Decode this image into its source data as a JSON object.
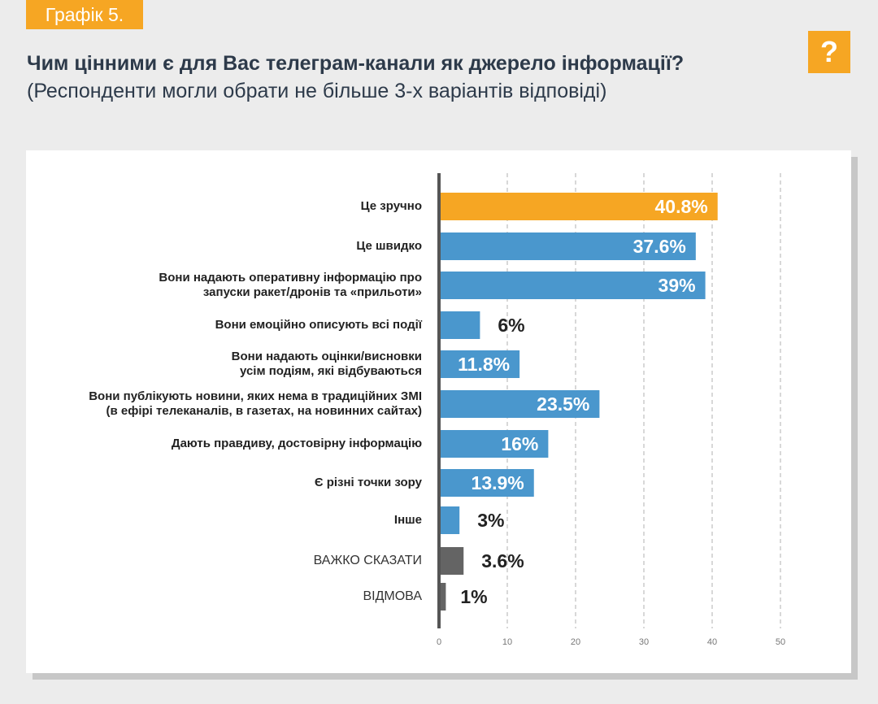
{
  "header": {
    "tag": "Графік 5.",
    "title": "Чим цінними є для Вас телеграм-канали як джерело інформації?",
    "subtitle": "(Респонденти могли обрати не більше 3-х варіантів відповіді)",
    "icon": "question-mark-icon",
    "icon_glyph": "?"
  },
  "colors": {
    "accent": "#f6a623",
    "bar": "#4a97cd",
    "bar_other": "#646464",
    "grid": "#cccccc",
    "axis": "#555555"
  },
  "chart_data": {
    "type": "bar",
    "orientation": "horizontal",
    "title": "Чим цінними є для Вас телеграм-канали як джерело інформації?",
    "xlabel": "",
    "ylabel": "",
    "xlim": [
      0,
      50
    ],
    "xticks": [
      0,
      10,
      20,
      30,
      40,
      50
    ],
    "grid": true,
    "categories": [
      [
        "Це зручно"
      ],
      [
        "Це швидко"
      ],
      [
        "Вони надають оперативну інформацію про",
        "запуски ракет/дронів та «прильоти»"
      ],
      [
        "Вони емоційно описують всі події"
      ],
      [
        "Вони надають оцінки/висновки",
        "усім подіям, які відбуваються"
      ],
      [
        "Вони публікують новини, яких нема в традиційних ЗМІ",
        "(в ефірі телеканалів, в газетах, на новинних сайтах)"
      ],
      [
        "Дають правдиву, достовірну інформацію"
      ],
      [
        "Є різні точки зору"
      ],
      [
        "Інше"
      ],
      [
        "ВАЖКО СКАЗАТИ"
      ],
      [
        "ВІДМОВА"
      ]
    ],
    "values": [
      40.8,
      37.6,
      39,
      6,
      11.8,
      23.5,
      16,
      13.9,
      3,
      3.6,
      1
    ],
    "value_labels": [
      "40.8%",
      "37.6%",
      "39%",
      "6%",
      "11.8%",
      "23.5%",
      "16%",
      "13.9%",
      "3%",
      "3.6%",
      "1%"
    ],
    "bar_kinds": [
      "highlight",
      "normal",
      "normal",
      "normal",
      "normal",
      "normal",
      "normal",
      "normal",
      "normal",
      "other",
      "other"
    ]
  }
}
